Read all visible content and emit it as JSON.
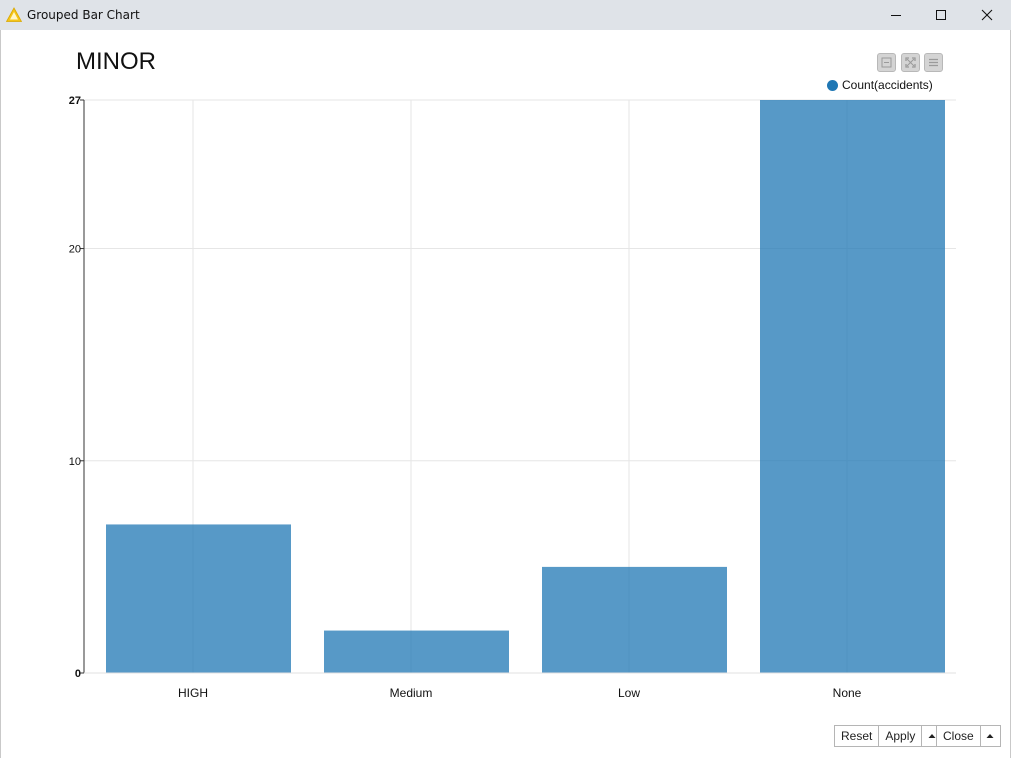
{
  "window": {
    "title": "Grouped Bar Chart"
  },
  "chart_data": {
    "type": "bar",
    "title": "MINOR",
    "categories": [
      "HIGH",
      "Medium",
      "Low",
      "None"
    ],
    "series": [
      {
        "name": "Count(accidents)",
        "values": [
          7,
          2,
          5,
          27
        ],
        "color": "#1f77b4"
      }
    ],
    "ylim": [
      0,
      27
    ],
    "yticks": [
      "0",
      "10",
      "20",
      "27"
    ],
    "xlabel": "",
    "ylabel": "",
    "grid": true,
    "legend_position": "top-right"
  },
  "footer": {
    "reset_label": "Reset",
    "apply_label": "Apply",
    "close_label": "Close"
  }
}
